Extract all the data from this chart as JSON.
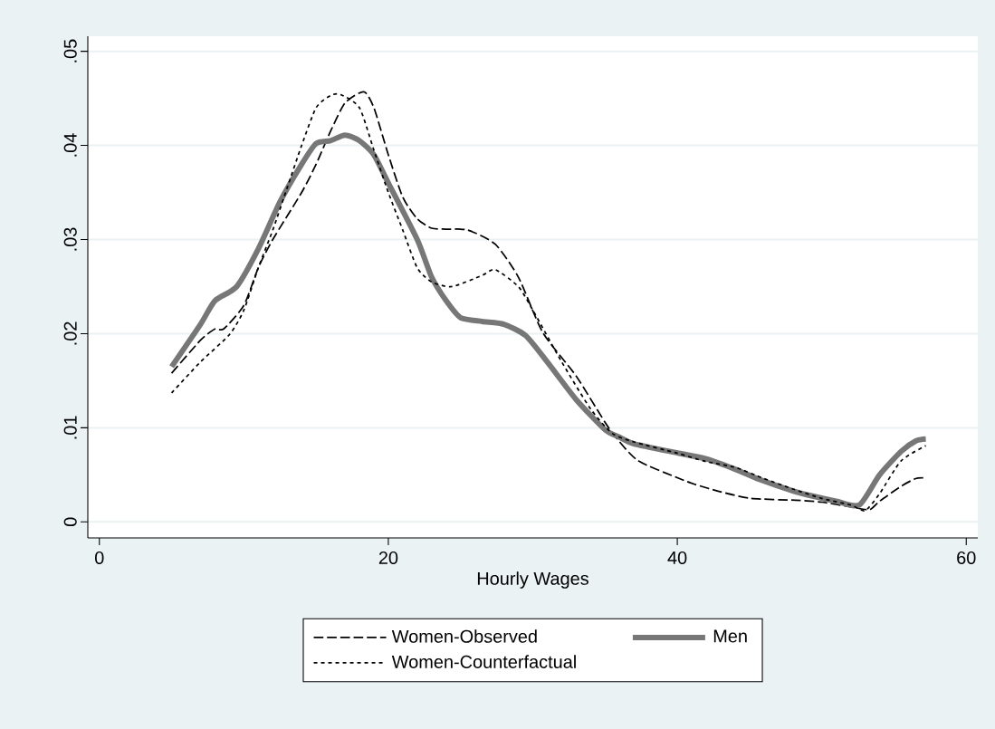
{
  "chart_data": {
    "type": "line",
    "xlabel": "Hourly Wages",
    "xlim": [
      -0.8,
      60.8
    ],
    "ylim": [
      -0.0017,
      0.0516
    ],
    "xticks": [
      0,
      20,
      40,
      60
    ],
    "yticks": [
      {
        "value": 0,
        "label": "0"
      },
      {
        "value": 0.01,
        "label": ".01"
      },
      {
        "value": 0.02,
        "label": ".02"
      },
      {
        "value": 0.03,
        "label": ".03"
      },
      {
        "value": 0.04,
        "label": ".04"
      },
      {
        "value": 0.05,
        "label": ".05"
      }
    ],
    "grid": "y",
    "legend": "bottom",
    "marker": "none",
    "series": [
      {
        "name": "Women-Observed",
        "color": "#000000",
        "line_style": "dashed",
        "x": [
          5,
          7,
          8,
          8.6,
          10,
          11,
          12,
          14,
          15,
          16,
          17,
          18.3,
          19,
          20,
          21,
          22,
          23,
          24,
          25.5,
          27.4,
          29,
          30.7,
          33,
          35.3,
          37.2,
          40,
          41.2,
          43,
          45.1,
          48.2,
          50,
          52,
          53.3,
          54,
          55.5,
          56.5,
          57.2
        ],
        "values": [
          0.0158,
          0.0193,
          0.0205,
          0.0205,
          0.023,
          0.027,
          0.03,
          0.035,
          0.038,
          0.0415,
          0.0445,
          0.0457,
          0.044,
          0.039,
          0.0345,
          0.0322,
          0.0312,
          0.0311,
          0.031,
          0.0295,
          0.026,
          0.0201,
          0.0155,
          0.0099,
          0.0066,
          0.0047,
          0.004,
          0.0032,
          0.0025,
          0.0023,
          0.0021,
          0.0016,
          0.0013,
          0.0022,
          0.0038,
          0.0046,
          0.0047
        ]
      },
      {
        "name": "Men",
        "color": "#777777",
        "line_style": "solid",
        "x": [
          5,
          7,
          8,
          9.5,
          11,
          12.5,
          14,
          15,
          16,
          17,
          18,
          19,
          20,
          22,
          23,
          24,
          25,
          26.5,
          28,
          29.5,
          31,
          33,
          35,
          36,
          37,
          40.1,
          42,
          44,
          45.7,
          48,
          49.5,
          51,
          52.6,
          54,
          55.5,
          56.5,
          57.2
        ],
        "values": [
          0.0165,
          0.021,
          0.0235,
          0.025,
          0.029,
          0.034,
          0.038,
          0.0402,
          0.0405,
          0.0411,
          0.0405,
          0.039,
          0.036,
          0.03,
          0.026,
          0.0235,
          0.0217,
          0.0213,
          0.021,
          0.0198,
          0.017,
          0.013,
          0.0098,
          0.009,
          0.0083,
          0.0073,
          0.0067,
          0.0056,
          0.0045,
          0.0033,
          0.0027,
          0.0022,
          0.0018,
          0.005,
          0.0075,
          0.0086,
          0.0088
        ]
      },
      {
        "name": "Women-Counterfactual",
        "color": "#000000",
        "line_style": "dotted",
        "x": [
          5,
          7,
          9,
          10,
          11,
          12,
          13,
          14,
          15,
          16,
          16.7,
          18,
          19,
          20,
          21,
          22,
          23,
          24.4,
          26.5,
          27.4,
          29,
          30,
          32,
          34,
          35.5,
          37,
          40,
          42,
          44,
          46,
          48,
          50,
          52,
          53,
          54,
          55.5,
          57.2
        ],
        "values": [
          0.0137,
          0.017,
          0.0199,
          0.0225,
          0.027,
          0.031,
          0.0355,
          0.04,
          0.044,
          0.0453,
          0.0454,
          0.044,
          0.0395,
          0.035,
          0.031,
          0.027,
          0.0255,
          0.025,
          0.0262,
          0.0268,
          0.025,
          0.0225,
          0.017,
          0.012,
          0.0094,
          0.0085,
          0.0073,
          0.0064,
          0.0058,
          0.0046,
          0.0035,
          0.0025,
          0.0018,
          0.0012,
          0.003,
          0.0065,
          0.0081
        ]
      }
    ]
  }
}
